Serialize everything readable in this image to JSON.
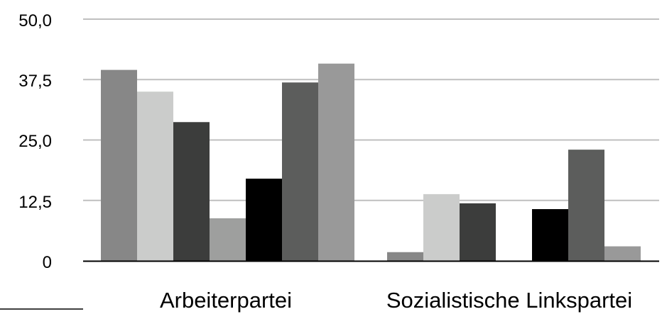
{
  "chart_data": {
    "type": "bar",
    "title": "",
    "xlabel": "",
    "ylabel": "",
    "categories": [
      "Arbeiterpartei",
      "Sozialistische Linkspartei"
    ],
    "series": [
      {
        "color": "#878787",
        "values": [
          39.5,
          1.8
        ]
      },
      {
        "color": "#cbcccb",
        "values": [
          35.0,
          13.8
        ]
      },
      {
        "color": "#3c3d3c",
        "values": [
          28.7,
          11.9
        ]
      },
      {
        "color": "#9e9f9e",
        "values": [
          8.8,
          0
        ]
      },
      {
        "color": "#000000",
        "values": [
          17.0,
          10.7
        ]
      },
      {
        "color": "#5c5d5c",
        "values": [
          36.9,
          23.0
        ]
      },
      {
        "color": "#999999",
        "values": [
          40.8,
          3.0
        ]
      }
    ],
    "ylim": [
      0,
      50
    ],
    "yticks": [
      "0",
      "12,5",
      "25,0",
      "37,5",
      "50,0"
    ],
    "grid": true,
    "grid_color": "#bfbfbf",
    "axis_color": "#000000",
    "legend": "none"
  }
}
